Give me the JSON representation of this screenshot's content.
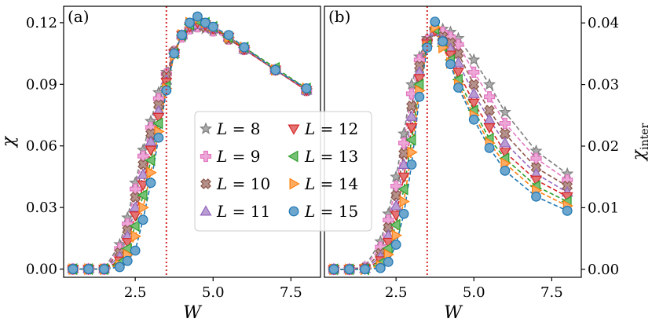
{
  "chart_data": [
    {
      "type": "line",
      "panel_label": "(a)",
      "xlabel": "W",
      "ylabel": "χ",
      "xlim": [
        0.2,
        8.45
      ],
      "ylim": [
        -0.004,
        0.128
      ],
      "xticks": [
        "2.5",
        "5.0",
        "7.5"
      ],
      "yticks": [
        "0.00",
        "0.03",
        "0.06",
        "0.09",
        "0.12"
      ],
      "vline_x": 3.5,
      "series": [
        {
          "name": "L = 8",
          "x": [
            0.5,
            1.0,
            1.5,
            2.0,
            2.25,
            2.5,
            2.75,
            3.0,
            3.25,
            3.5,
            3.75,
            4.0,
            4.25,
            4.5,
            4.75,
            5.0,
            5.5,
            6.0,
            7.0,
            8.0
          ],
          "y": [
            0.0,
            0.0,
            0.0,
            0.012,
            0.025,
            0.042,
            0.058,
            0.072,
            0.086,
            0.096,
            0.106,
            0.113,
            0.117,
            0.118,
            0.117,
            0.116,
            0.112,
            0.107,
            0.097,
            0.087
          ]
        },
        {
          "name": "L = 9",
          "x": [
            0.5,
            1.0,
            1.5,
            2.0,
            2.25,
            2.5,
            2.75,
            3.0,
            3.25,
            3.5,
            3.75,
            4.0,
            4.25,
            4.5,
            4.75,
            5.0,
            5.5,
            6.0,
            7.0,
            8.0
          ],
          "y": [
            0.0,
            0.0,
            0.0,
            0.01,
            0.022,
            0.039,
            0.055,
            0.069,
            0.083,
            0.095,
            0.106,
            0.113,
            0.117,
            0.118,
            0.118,
            0.116,
            0.112,
            0.107,
            0.097,
            0.087
          ]
        },
        {
          "name": "L = 10",
          "x": [
            0.5,
            1.0,
            1.5,
            2.0,
            2.25,
            2.5,
            2.75,
            3.0,
            3.25,
            3.5,
            3.75,
            4.0,
            4.25,
            4.5,
            4.75,
            5.0,
            5.5,
            6.0,
            7.0,
            8.0
          ],
          "y": [
            0.0,
            0.0,
            0.0,
            0.008,
            0.019,
            0.035,
            0.051,
            0.066,
            0.08,
            0.094,
            0.106,
            0.114,
            0.118,
            0.119,
            0.118,
            0.117,
            0.112,
            0.107,
            0.097,
            0.087
          ]
        },
        {
          "name": "L = 11",
          "x": [
            0.5,
            1.0,
            1.5,
            2.0,
            2.25,
            2.5,
            2.75,
            3.0,
            3.25,
            3.5,
            3.75,
            4.0,
            4.25,
            4.5,
            4.75,
            5.0,
            5.5,
            6.0,
            7.0,
            8.0
          ],
          "y": [
            0.0,
            0.0,
            0.0,
            0.006,
            0.016,
            0.03,
            0.046,
            0.062,
            0.077,
            0.092,
            0.105,
            0.114,
            0.118,
            0.119,
            0.119,
            0.117,
            0.113,
            0.107,
            0.097,
            0.087
          ]
        },
        {
          "name": "L = 12",
          "x": [
            0.5,
            1.0,
            1.5,
            2.0,
            2.25,
            2.5,
            2.75,
            3.0,
            3.25,
            3.5,
            3.75,
            4.0,
            4.25,
            4.5,
            4.75,
            5.0,
            5.5,
            6.0,
            7.0,
            8.0
          ],
          "y": [
            0.0,
            0.0,
            0.0,
            0.004,
            0.013,
            0.026,
            0.041,
            0.058,
            0.074,
            0.091,
            0.105,
            0.114,
            0.118,
            0.12,
            0.119,
            0.117,
            0.113,
            0.107,
            0.097,
            0.087
          ]
        },
        {
          "name": "L = 13",
          "x": [
            0.5,
            1.0,
            1.5,
            2.0,
            2.25,
            2.5,
            2.75,
            3.0,
            3.25,
            3.5,
            3.75,
            4.0,
            4.25,
            4.5,
            4.75,
            5.0,
            5.5,
            6.0,
            7.0,
            8.0
          ],
          "y": [
            0.0,
            0.0,
            0.0,
            0.003,
            0.01,
            0.021,
            0.036,
            0.053,
            0.071,
            0.089,
            0.105,
            0.114,
            0.119,
            0.121,
            0.12,
            0.118,
            0.113,
            0.108,
            0.098,
            0.088
          ]
        },
        {
          "name": "L = 14",
          "x": [
            0.5,
            1.0,
            1.5,
            2.0,
            2.25,
            2.5,
            2.75,
            3.0,
            3.25,
            3.5,
            3.75,
            4.0,
            4.25,
            4.5,
            4.75,
            5.0,
            5.5,
            6.0,
            7.0,
            8.0
          ],
          "y": [
            0.0,
            0.0,
            0.0,
            0.002,
            0.007,
            0.016,
            0.03,
            0.047,
            0.067,
            0.088,
            0.104,
            0.114,
            0.12,
            0.122,
            0.12,
            0.118,
            0.113,
            0.108,
            0.097,
            0.088
          ]
        },
        {
          "name": "L = 15",
          "x": [
            0.5,
            1.0,
            1.5,
            2.0,
            2.25,
            2.5,
            2.75,
            3.0,
            3.25,
            3.5,
            3.75,
            4.0,
            4.25,
            4.5,
            4.75,
            5.0,
            5.5,
            6.0,
            7.0,
            8.0
          ],
          "y": [
            0.0,
            0.0,
            0.0,
            0.001,
            0.004,
            0.009,
            0.024,
            0.042,
            0.064,
            0.087,
            0.105,
            0.114,
            0.12,
            0.123,
            0.12,
            0.118,
            0.114,
            0.108,
            0.097,
            0.088
          ]
        }
      ]
    },
    {
      "type": "line",
      "panel_label": "(b)",
      "xlabel": "W",
      "ylabel": "χinter",
      "xlim": [
        0.2,
        8.45
      ],
      "ylim": [
        -0.0013,
        0.0427
      ],
      "xticks": [
        "2.5",
        "5.0",
        "7.5"
      ],
      "yticks": [
        "0.00",
        "0.01",
        "0.02",
        "0.03",
        "0.04"
      ],
      "vline_x": 3.5,
      "series": [
        {
          "name": "L = 8",
          "x": [
            0.5,
            1.0,
            1.5,
            2.0,
            2.25,
            2.5,
            2.75,
            3.0,
            3.25,
            3.5,
            3.75,
            4.0,
            4.25,
            4.5,
            5.0,
            5.5,
            6.0,
            7.0,
            8.0
          ],
          "y": [
            0.0,
            0.0,
            0.0004,
            0.0045,
            0.009,
            0.015,
            0.022,
            0.03,
            0.0345,
            0.0375,
            0.039,
            0.039,
            0.0385,
            0.0375,
            0.034,
            0.03,
            0.0255,
            0.0192,
            0.0155
          ]
        },
        {
          "name": "L = 9",
          "x": [
            0.5,
            1.0,
            1.5,
            2.0,
            2.25,
            2.5,
            2.75,
            3.0,
            3.25,
            3.5,
            3.75,
            4.0,
            4.25,
            4.5,
            5.0,
            5.5,
            6.0,
            7.0,
            8.0
          ],
          "y": [
            0.0,
            0.0,
            0.0003,
            0.0036,
            0.008,
            0.0135,
            0.0205,
            0.0285,
            0.034,
            0.0372,
            0.0388,
            0.0385,
            0.0377,
            0.0365,
            0.032,
            0.028,
            0.0237,
            0.018,
            0.0145
          ]
        },
        {
          "name": "L = 10",
          "x": [
            0.5,
            1.0,
            1.5,
            2.0,
            2.25,
            2.5,
            2.75,
            3.0,
            3.25,
            3.5,
            3.75,
            4.0,
            4.25,
            4.5,
            5.0,
            5.5,
            6.0,
            7.0,
            8.0
          ],
          "y": [
            0.0,
            0.0,
            0.0002,
            0.0026,
            0.0068,
            0.012,
            0.0188,
            0.0265,
            0.033,
            0.037,
            0.0386,
            0.0378,
            0.0368,
            0.035,
            0.03,
            0.0258,
            0.022,
            0.0165,
            0.0135
          ]
        },
        {
          "name": "L = 11",
          "x": [
            0.5,
            1.0,
            1.5,
            2.0,
            2.25,
            2.5,
            2.75,
            3.0,
            3.25,
            3.5,
            3.75,
            4.0,
            4.25,
            4.5,
            5.0,
            5.5,
            6.0,
            7.0,
            8.0
          ],
          "y": [
            0.0,
            0.0,
            0.0001,
            0.002,
            0.0055,
            0.0103,
            0.017,
            0.0248,
            0.032,
            0.0368,
            0.0386,
            0.0372,
            0.0358,
            0.0335,
            0.0285,
            0.0243,
            0.0205,
            0.0155,
            0.0125
          ]
        },
        {
          "name": "L = 12",
          "x": [
            0.5,
            1.0,
            1.5,
            2.0,
            2.25,
            2.5,
            2.75,
            3.0,
            3.25,
            3.5,
            3.75,
            4.0,
            4.25,
            4.5,
            5.0,
            5.5,
            6.0,
            7.0,
            8.0
          ],
          "y": [
            0.0,
            0.0,
            0.0001,
            0.0014,
            0.0044,
            0.0088,
            0.015,
            0.023,
            0.031,
            0.0366,
            0.0387,
            0.0366,
            0.0348,
            0.032,
            0.027,
            0.023,
            0.019,
            0.0145,
            0.0118
          ]
        },
        {
          "name": "L = 13",
          "x": [
            0.5,
            1.0,
            1.5,
            2.0,
            2.25,
            2.5,
            2.75,
            3.0,
            3.25,
            3.5,
            3.75,
            4.0,
            4.25,
            4.5,
            5.0,
            5.5,
            6.0,
            7.0,
            8.0
          ],
          "y": [
            0.0,
            0.0,
            0.0,
            0.001,
            0.0034,
            0.0072,
            0.013,
            0.021,
            0.03,
            0.0364,
            0.039,
            0.0362,
            0.034,
            0.0308,
            0.0258,
            0.0212,
            0.018,
            0.0135,
            0.011
          ]
        },
        {
          "name": "L = 14",
          "x": [
            0.5,
            1.0,
            1.5,
            2.0,
            2.25,
            2.5,
            2.75,
            3.0,
            3.25,
            3.5,
            3.75,
            4.0,
            4.25,
            4.5,
            5.0,
            5.5,
            6.0,
            7.0,
            8.0
          ],
          "y": [
            0.0,
            0.0,
            0.0,
            0.0006,
            0.0024,
            0.0055,
            0.011,
            0.019,
            0.029,
            0.0362,
            0.0393,
            0.036,
            0.0335,
            0.03,
            0.025,
            0.0205,
            0.0172,
            0.0128,
            0.0103
          ]
        },
        {
          "name": "L = 15",
          "x": [
            0.5,
            1.0,
            1.5,
            2.0,
            2.25,
            2.5,
            2.75,
            3.0,
            3.25,
            3.5,
            3.75,
            4.0,
            4.25,
            4.5,
            5.0,
            5.5,
            6.0,
            7.0,
            8.0
          ],
          "y": [
            0.0,
            0.0,
            0.0,
            0.0002,
            0.0012,
            0.004,
            0.009,
            0.017,
            0.028,
            0.036,
            0.0402,
            0.037,
            0.0333,
            0.0295,
            0.0243,
            0.0197,
            0.016,
            0.0118,
            0.0095
          ]
        }
      ]
    }
  ],
  "legend": {
    "placement": "center",
    "entries": [
      {
        "label": "L = 8",
        "var": "L",
        "eq": "= 8"
      },
      {
        "label": "L = 9",
        "var": "L",
        "eq": "= 9"
      },
      {
        "label": "L = 10",
        "var": "L",
        "eq": "= 10"
      },
      {
        "label": "L = 11",
        "var": "L",
        "eq": "= 11"
      },
      {
        "label": "L = 12",
        "var": "L",
        "eq": "= 12"
      },
      {
        "label": "L = 13",
        "var": "L",
        "eq": "= 13"
      },
      {
        "label": "L = 14",
        "var": "L",
        "eq": "= 14"
      },
      {
        "label": "L = 15",
        "var": "L",
        "eq": "= 15"
      }
    ]
  },
  "styles": [
    {
      "marker": "star",
      "color": "#7f7f7f"
    },
    {
      "marker": "plus",
      "color": "#e377c2"
    },
    {
      "marker": "x",
      "color": "#8c564b"
    },
    {
      "marker": "triangle-up",
      "color": "#9467bd"
    },
    {
      "marker": "triangle-down",
      "color": "#d62728"
    },
    {
      "marker": "triangle-left",
      "color": "#2ca02c"
    },
    {
      "marker": "triangle-right",
      "color": "#ff7f0e"
    },
    {
      "marker": "circle",
      "color": "#1f77b4"
    }
  ],
  "vline_color": "#d62728"
}
